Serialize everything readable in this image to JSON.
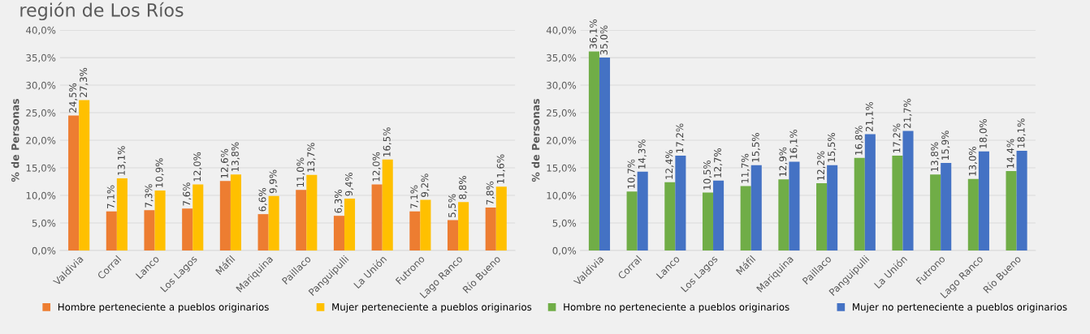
{
  "chart_data": [
    {
      "type": "bar",
      "title": "región de Los Ríos",
      "ylabel": "% de Personas",
      "categories": [
        "Valdivia",
        "Corral",
        "Lanco",
        "Los Lagos",
        "Máfil",
        "Mariquina",
        "Paillaco",
        "Panguipulli",
        "La Unión",
        "Futrono",
        "Lago Ranco",
        "Río Bueno"
      ],
      "series": [
        {
          "name": "Hombre perteneciente a pueblos originarios",
          "color": "#ed7d31",
          "values": [
            24.5,
            7.1,
            7.3,
            7.6,
            12.6,
            6.6,
            11.0,
            6.3,
            12.0,
            7.1,
            5.5,
            7.8
          ],
          "value_labels": [
            "24,5%",
            "7,1%",
            "7,3%",
            "7,6%",
            "12,6%",
            "6,6%",
            "11,0%",
            "6,3%",
            "12,0%",
            "7,1%",
            "5,5%",
            "7,8%"
          ]
        },
        {
          "name": "Mujer perteneciente a pueblos originarios",
          "color": "#ffc000",
          "values": [
            27.3,
            13.1,
            10.9,
            12.0,
            13.8,
            9.9,
            13.7,
            9.4,
            16.5,
            9.2,
            8.8,
            11.6
          ],
          "value_labels": [
            "27,3%",
            "13,1%",
            "10,9%",
            "12,0%",
            "13,8%",
            "9,9%",
            "13,7%",
            "9,4%",
            "16,5%",
            "9,2%",
            "8,8%",
            "11,6%"
          ]
        }
      ],
      "ylim": [
        0,
        40
      ],
      "yticks": [
        {
          "value": 0,
          "label": "0,0%"
        },
        {
          "value": 5,
          "label": "5,0%"
        },
        {
          "value": 10,
          "label": "10,0%"
        },
        {
          "value": 15,
          "label": "15,0%"
        },
        {
          "value": 20,
          "label": "20,0%"
        },
        {
          "value": 25,
          "label": "25,0%"
        },
        {
          "value": 30,
          "label": "30,0%"
        },
        {
          "value": 35,
          "label": "35,0%"
        },
        {
          "value": 40,
          "label": "40,0%"
        }
      ],
      "grid": "y",
      "legend": "bottom"
    },
    {
      "type": "bar",
      "ylabel": "% de Personas",
      "categories": [
        "Valdivia",
        "Corral",
        "Lanco",
        "Los Lagos",
        "Máfil",
        "Mariquina",
        "Paillaco",
        "Panguipulli",
        "La Unión",
        "Futrono",
        "Lago Ranco",
        "Río Bueno"
      ],
      "series": [
        {
          "name": "Hombre no perteneciente a pueblos originarios",
          "color": "#70ad47",
          "values": [
            36.1,
            10.7,
            12.4,
            10.5,
            11.7,
            12.9,
            12.2,
            16.8,
            17.2,
            13.8,
            13.0,
            14.4
          ],
          "value_labels": [
            "36,1%",
            "10,7%",
            "12,4%",
            "10,5%",
            "11,7%",
            "12,9%",
            "12,2%",
            "16,8%",
            "17,2%",
            "13,8%",
            "13,0%",
            "14,4%"
          ]
        },
        {
          "name": "Mujer no perteneciente a pueblos originarios",
          "color": "#4472c4",
          "values": [
            35.0,
            14.3,
            17.2,
            12.7,
            15.5,
            16.1,
            15.5,
            21.1,
            21.7,
            15.9,
            18.0,
            18.1
          ],
          "value_labels": [
            "35,0%",
            "14,3%",
            "17,2%",
            "12,7%",
            "15,5%",
            "16,1%",
            "15,5%",
            "21,1%",
            "21,7%",
            "15,9%",
            "18,0%",
            "18,1%"
          ]
        }
      ],
      "ylim": [
        0,
        40
      ],
      "yticks": [
        {
          "value": 0,
          "label": "0,0%"
        },
        {
          "value": 5,
          "label": "5,0%"
        },
        {
          "value": 10,
          "label": "10,0%"
        },
        {
          "value": 15,
          "label": "15,0%"
        },
        {
          "value": 20,
          "label": "20,0%"
        },
        {
          "value": 25,
          "label": "25,0%"
        },
        {
          "value": 30,
          "label": "30,0%"
        },
        {
          "value": 35,
          "label": "35,0%"
        },
        {
          "value": 40,
          "label": "40,0%"
        }
      ],
      "grid": "y",
      "legend": "bottom"
    }
  ]
}
